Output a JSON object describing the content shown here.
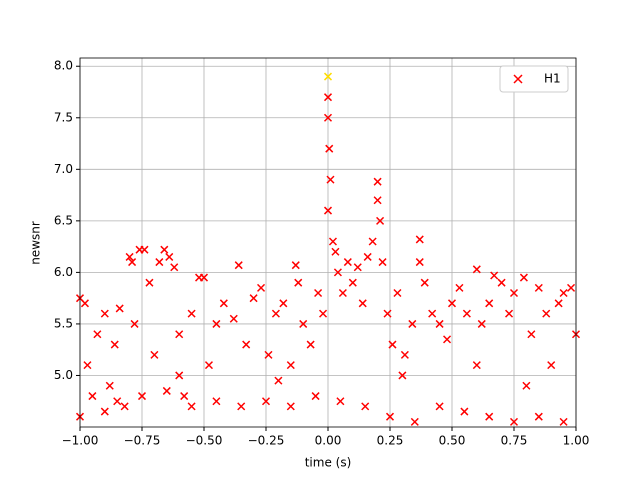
{
  "chart_data": {
    "type": "scatter",
    "xlabel": "time (s)",
    "ylabel": "newsnr",
    "xlim": [
      -1,
      1
    ],
    "ylim": [
      4.5,
      8.08
    ],
    "xticks": [
      {
        "value": -1,
        "label": "−1.00"
      },
      {
        "value": -0.75,
        "label": "−0.75"
      },
      {
        "value": -0.5,
        "label": "−0.50"
      },
      {
        "value": -0.25,
        "label": "−0.25"
      },
      {
        "value": 0,
        "label": "0.00"
      },
      {
        "value": 0.25,
        "label": "0.25"
      },
      {
        "value": 0.5,
        "label": "0.50"
      },
      {
        "value": 0.75,
        "label": "0.75"
      },
      {
        "value": 1,
        "label": "1.00"
      }
    ],
    "yticks": [
      {
        "value": 5,
        "label": "5.0"
      },
      {
        "value": 5.5,
        "label": "5.5"
      },
      {
        "value": 6,
        "label": "6.0"
      },
      {
        "value": 6.5,
        "label": "6.5"
      },
      {
        "value": 7,
        "label": "7.0"
      },
      {
        "value": 7.5,
        "label": "7.5"
      },
      {
        "value": 8,
        "label": "8.0"
      }
    ],
    "grid": true,
    "legend": "upper right",
    "series": [
      {
        "name": "H1",
        "color": "#ff0000",
        "x": [
          -1.0,
          -1.0,
          -0.98,
          -0.97,
          -0.95,
          -0.93,
          -0.9,
          -0.88,
          -0.86,
          -0.84,
          -0.82,
          -0.8,
          -0.79,
          -0.78,
          -0.76,
          -0.74,
          -0.72,
          -0.7,
          -0.68,
          -0.66,
          -0.64,
          -0.62,
          -0.6,
          -0.58,
          -0.55,
          -0.52,
          -0.5,
          -0.48,
          -0.45,
          -0.42,
          -0.38,
          -0.36,
          -0.33,
          -0.3,
          -0.27,
          -0.24,
          -0.21,
          -0.18,
          -0.15,
          -0.13,
          -0.12,
          -0.1,
          -0.07,
          -0.04,
          -0.02,
          0.0,
          0.0,
          0.005,
          0.01,
          0.0,
          0.02,
          0.03,
          0.04,
          0.06,
          0.08,
          0.1,
          0.12,
          0.14,
          0.16,
          0.18,
          0.2,
          0.2,
          0.21,
          0.22,
          0.24,
          0.26,
          0.28,
          0.31,
          0.34,
          0.37,
          0.37,
          0.39,
          0.42,
          0.45,
          0.48,
          0.5,
          0.53,
          0.56,
          0.6,
          0.62,
          0.65,
          0.67,
          0.7,
          0.73,
          0.75,
          0.79,
          0.82,
          0.85,
          0.88,
          0.9,
          0.93,
          0.95,
          0.98,
          1.0,
          -0.9,
          -0.85,
          -0.75,
          -0.65,
          -0.55,
          -0.45,
          -0.35,
          -0.25,
          -0.15,
          -0.05,
          0.05,
          0.15,
          0.25,
          0.35,
          0.45,
          0.55,
          0.65,
          0.75,
          0.85,
          0.95,
          -0.6,
          -0.2,
          0.3,
          0.6,
          0.8
        ],
        "values": [
          5.75,
          4.6,
          5.7,
          5.1,
          4.8,
          5.4,
          5.6,
          4.9,
          5.3,
          5.65,
          4.7,
          6.15,
          6.1,
          5.5,
          6.22,
          6.22,
          5.9,
          5.2,
          6.1,
          6.22,
          6.15,
          6.05,
          5.4,
          4.8,
          5.6,
          5.95,
          5.95,
          5.1,
          5.5,
          5.7,
          5.55,
          6.07,
          5.3,
          5.75,
          5.85,
          5.2,
          5.6,
          5.7,
          5.1,
          6.07,
          5.9,
          5.5,
          5.3,
          5.8,
          5.6,
          7.7,
          7.5,
          7.2,
          6.9,
          6.6,
          6.3,
          6.2,
          6.0,
          5.8,
          6.1,
          5.9,
          6.05,
          5.7,
          6.15,
          6.3,
          6.88,
          6.7,
          6.5,
          6.1,
          5.6,
          5.3,
          5.8,
          5.2,
          5.5,
          6.32,
          6.1,
          5.9,
          5.6,
          5.5,
          5.35,
          5.7,
          5.85,
          5.6,
          6.03,
          5.5,
          5.7,
          5.97,
          5.9,
          5.6,
          5.8,
          5.95,
          5.4,
          5.85,
          5.6,
          5.1,
          5.7,
          5.8,
          5.85,
          5.4,
          4.65,
          4.75,
          4.8,
          4.85,
          4.7,
          4.75,
          4.7,
          4.75,
          4.7,
          4.8,
          4.75,
          4.7,
          4.6,
          4.55,
          4.7,
          4.65,
          4.6,
          4.55,
          4.6,
          4.55,
          5.0,
          4.95,
          5.0,
          5.1,
          4.9
        ]
      },
      {
        "color": "#ffdd00",
        "x": [
          0
        ],
        "values": [
          7.9
        ]
      }
    ]
  }
}
